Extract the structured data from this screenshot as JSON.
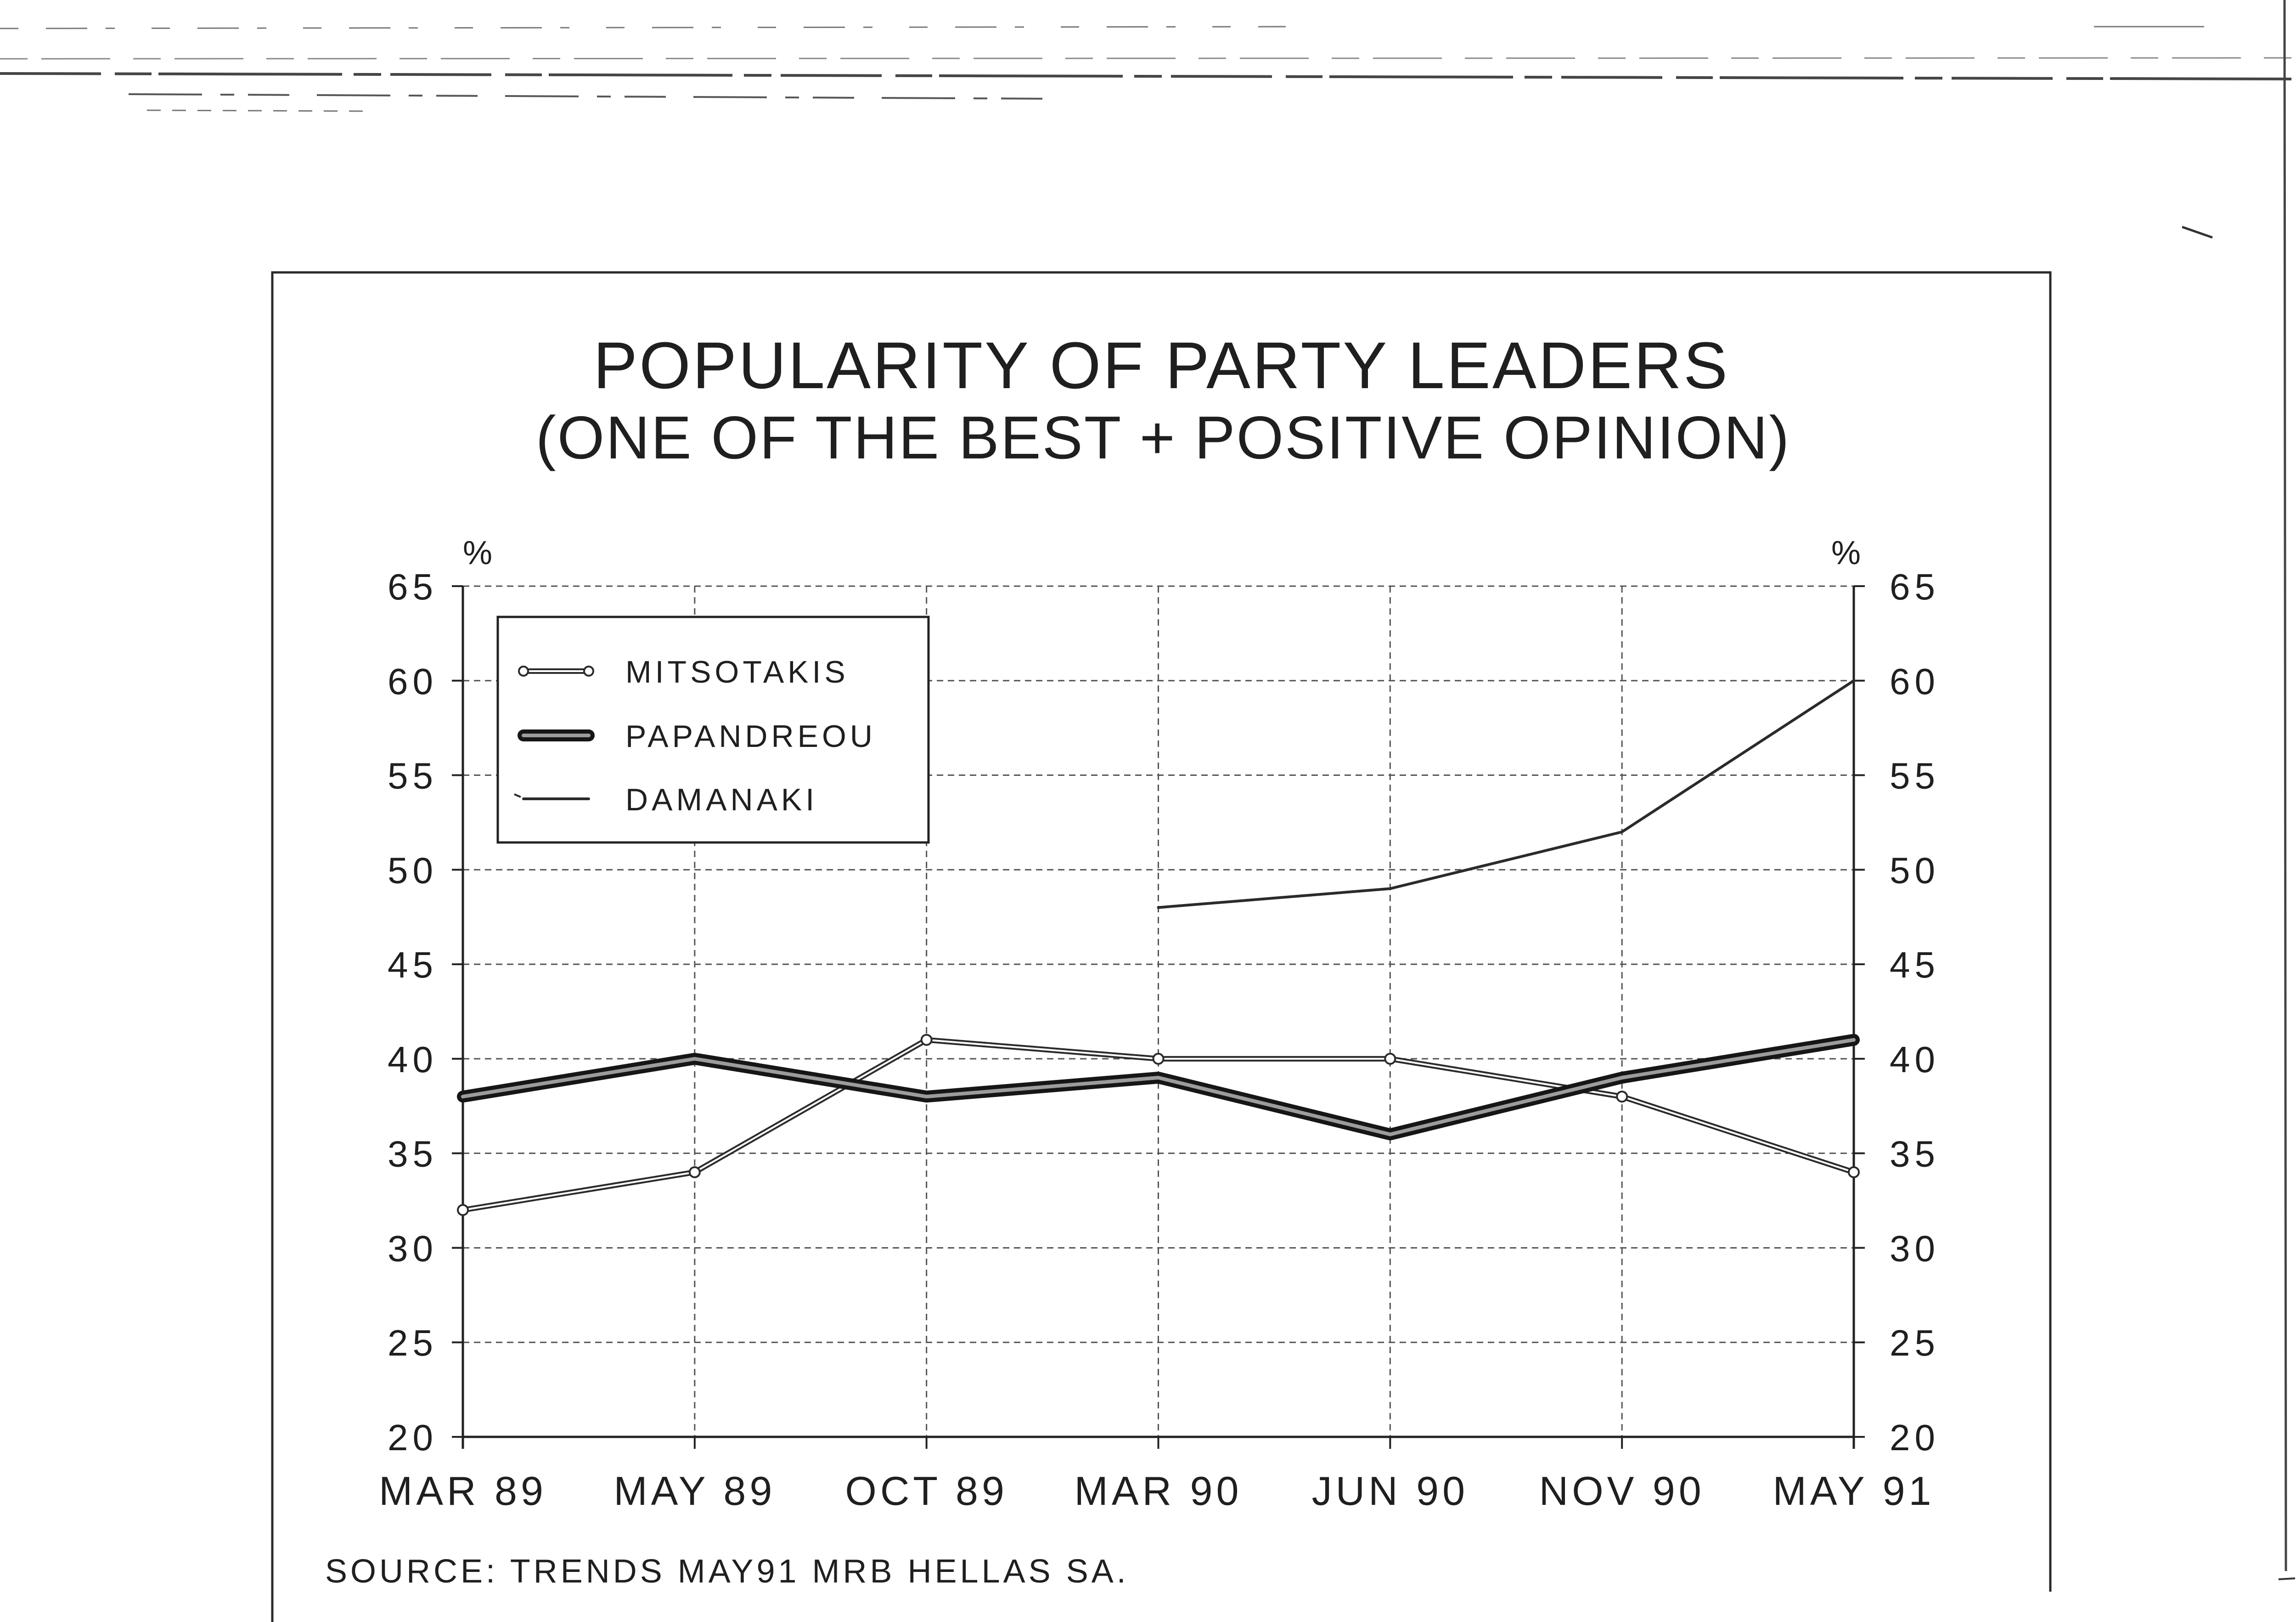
{
  "chart_data": {
    "type": "line",
    "title": "POPULARITY OF PARTY LEADERS",
    "subtitle": "(ONE OF THE BEST + POSITIVE OPINION)",
    "ylabel": "%",
    "ylabel_right": "%",
    "categories": [
      "MAR 89",
      "MAY 89",
      "OCT 89",
      "MAR 90",
      "JUN 90",
      "NOV 90",
      "MAY 91"
    ],
    "series": [
      {
        "name": "MITSOTAKIS",
        "values": [
          32,
          34,
          41,
          40,
          40,
          38,
          34
        ]
      },
      {
        "name": "PAPANDREOU",
        "values": [
          38,
          40,
          38,
          39,
          36,
          39,
          41
        ]
      },
      {
        "name": "DAMANAKI",
        "values": [
          null,
          null,
          null,
          48,
          49,
          52,
          60
        ]
      }
    ],
    "ylim": [
      20,
      65
    ],
    "yticks": [
      20,
      25,
      30,
      35,
      40,
      45,
      50,
      55,
      60,
      65
    ],
    "grid": true,
    "legend_position": "top-left",
    "source": "SOURCE: TRENDS MAY91 MRB HELLAS SA."
  }
}
